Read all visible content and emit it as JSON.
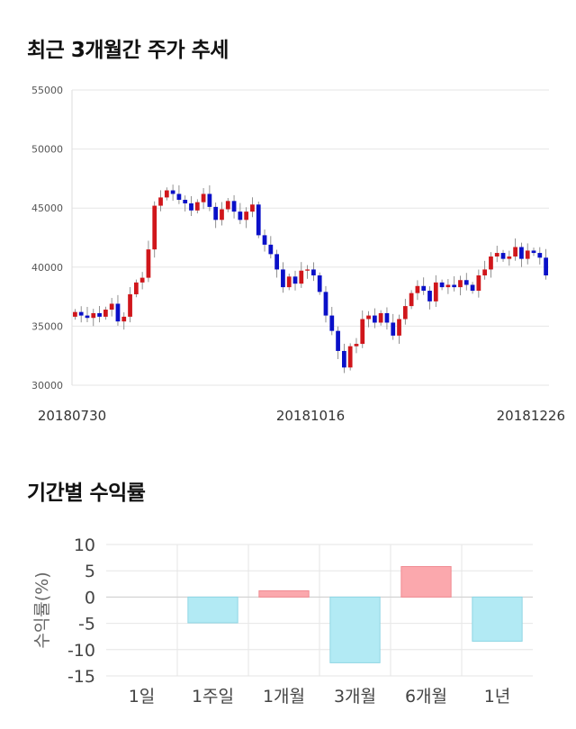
{
  "sections": {
    "price_title": "최근 3개월간 주가 추세",
    "returns_title": "기간별 수익률"
  },
  "colors": {
    "up": "#d0161b",
    "down": "#0a10c8",
    "positive_bar": "#fba8ad",
    "negative_bar": "#b2eaf4",
    "grid": "#e6e6e6"
  },
  "chart_data": [
    {
      "type": "candlestick",
      "title": "최근 3개월간 주가 추세",
      "ylim": [
        30000,
        55000
      ],
      "yticks": [
        30000,
        35000,
        40000,
        45000,
        50000,
        55000
      ],
      "x_tick_labels": [
        "20180730",
        "20181016",
        "20181226"
      ],
      "grid": true,
      "close_series": [
        36200,
        35900,
        35700,
        36100,
        35800,
        36400,
        36900,
        35400,
        35800,
        37700,
        38700,
        39100,
        41500,
        45200,
        45900,
        46500,
        46200,
        45700,
        45400,
        44800,
        45500,
        46200,
        45100,
        44000,
        44900,
        45600,
        44700,
        44000,
        44700,
        45300,
        42700,
        41900,
        41100,
        39800,
        38300,
        39200,
        38600,
        39700,
        39800,
        39300,
        37900,
        35900,
        34600,
        32900,
        31500,
        33300,
        33500,
        35600,
        35900,
        35300,
        36100,
        35300,
        34200,
        35600,
        36700,
        37800,
        38400,
        38000,
        37100,
        38700,
        38300,
        38500,
        38300,
        38900,
        38500,
        38000,
        39300,
        39800,
        40900,
        41200,
        40700,
        40900,
        41700,
        40700,
        41400,
        41200,
        40800,
        39300
      ]
    },
    {
      "type": "bar",
      "categories": [
        "1일",
        "1주일",
        "1개월",
        "3개월",
        "6개월",
        "1년"
      ],
      "values": [
        0,
        -4.9,
        1.2,
        -12.5,
        5.8,
        -8.4
      ],
      "ylabel": "수익률(%)",
      "ylim": [
        -15,
        10
      ],
      "yticks": [
        10,
        5,
        0,
        -5,
        -10,
        -15
      ],
      "grid": true
    }
  ]
}
